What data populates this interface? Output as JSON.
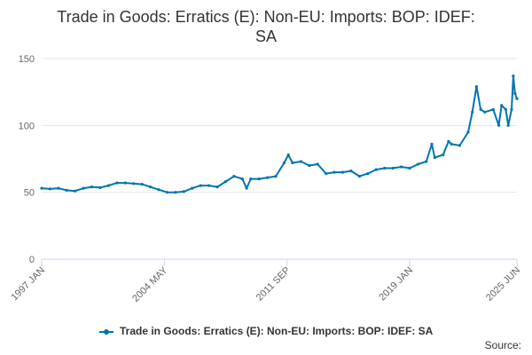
{
  "chart_data": {
    "type": "line",
    "title_lines": [
      "Trade in Goods: Erratics (E): Non-EU: Imports: BOP: IDEF:",
      "SA"
    ],
    "xlabel": "",
    "ylabel": "",
    "ylim": [
      0,
      150
    ],
    "yticks": [
      0,
      50,
      100,
      150
    ],
    "xticks": [
      {
        "label": "1997 JAN",
        "t": 1997.0
      },
      {
        "label": "2004 MAY",
        "t": 2004.333
      },
      {
        "label": "2011 SEP",
        "t": 2011.667
      },
      {
        "label": "2019 JAN",
        "t": 2019.0
      },
      {
        "label": "2025 JUN",
        "t": 2025.417
      }
    ],
    "xlim": [
      1997.0,
      2025.417
    ],
    "grid": true,
    "legend_position": "bottom",
    "series": [
      {
        "name": "Trade in Goods: Erratics (E): Non-EU: Imports: BOP: IDEF: SA",
        "color": "#0075b0",
        "points": [
          [
            1997.0,
            53
          ],
          [
            1997.5,
            52.5
          ],
          [
            1998.0,
            53
          ],
          [
            1998.5,
            51.5
          ],
          [
            1999.0,
            51
          ],
          [
            1999.5,
            53
          ],
          [
            2000.0,
            54
          ],
          [
            2000.5,
            53.5
          ],
          [
            2001.0,
            55
          ],
          [
            2001.5,
            57
          ],
          [
            2002.0,
            57
          ],
          [
            2002.5,
            56.5
          ],
          [
            2003.0,
            56
          ],
          [
            2003.5,
            54
          ],
          [
            2004.0,
            52
          ],
          [
            2004.5,
            50
          ],
          [
            2005.0,
            50
          ],
          [
            2005.5,
            50.5
          ],
          [
            2006.0,
            53
          ],
          [
            2006.5,
            55
          ],
          [
            2007.0,
            55
          ],
          [
            2007.5,
            54
          ],
          [
            2008.0,
            58
          ],
          [
            2008.5,
            62
          ],
          [
            2009.0,
            60
          ],
          [
            2009.25,
            53
          ],
          [
            2009.5,
            60
          ],
          [
            2010.0,
            60
          ],
          [
            2010.5,
            61
          ],
          [
            2011.0,
            62
          ],
          [
            2011.5,
            72
          ],
          [
            2011.75,
            78
          ],
          [
            2012.0,
            72
          ],
          [
            2012.5,
            73
          ],
          [
            2013.0,
            70
          ],
          [
            2013.5,
            71
          ],
          [
            2014.0,
            64
          ],
          [
            2014.5,
            65
          ],
          [
            2015.0,
            65
          ],
          [
            2015.5,
            66
          ],
          [
            2016.0,
            62
          ],
          [
            2016.5,
            64
          ],
          [
            2017.0,
            67
          ],
          [
            2017.5,
            68
          ],
          [
            2018.0,
            68
          ],
          [
            2018.5,
            69
          ],
          [
            2019.0,
            68
          ],
          [
            2019.5,
            71
          ],
          [
            2020.0,
            73
          ],
          [
            2020.33,
            86
          ],
          [
            2020.5,
            76
          ],
          [
            2021.0,
            78
          ],
          [
            2021.33,
            88
          ],
          [
            2021.5,
            86
          ],
          [
            2022.0,
            85
          ],
          [
            2022.5,
            95
          ],
          [
            2022.75,
            110
          ],
          [
            2023.0,
            129
          ],
          [
            2023.25,
            112
          ],
          [
            2023.5,
            110
          ],
          [
            2024.0,
            112
          ],
          [
            2024.33,
            100
          ],
          [
            2024.5,
            115
          ],
          [
            2024.75,
            112
          ],
          [
            2024.9,
            100
          ],
          [
            2025.1,
            112
          ],
          [
            2025.2,
            137
          ],
          [
            2025.3,
            124
          ],
          [
            2025.417,
            120
          ]
        ]
      }
    ]
  },
  "legend": {
    "label": "Trade in Goods: Erratics (E): Non-EU: Imports: BOP: IDEF: SA"
  },
  "credit": {
    "label": "Source:"
  }
}
